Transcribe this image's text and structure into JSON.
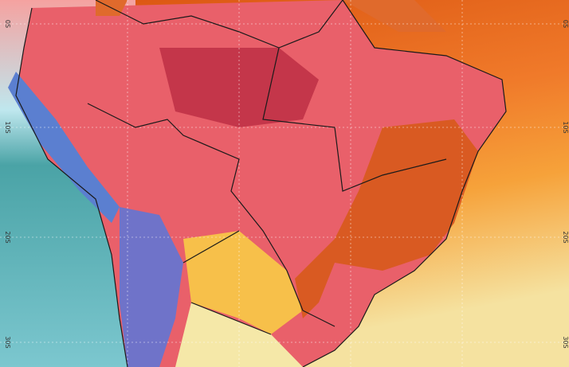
{
  "map": {
    "lat_labels_left": [
      "0S",
      "10S",
      "20S",
      "30S"
    ],
    "lat_labels_right": [
      "0S",
      "10S",
      "20S",
      "30S"
    ]
  }
}
